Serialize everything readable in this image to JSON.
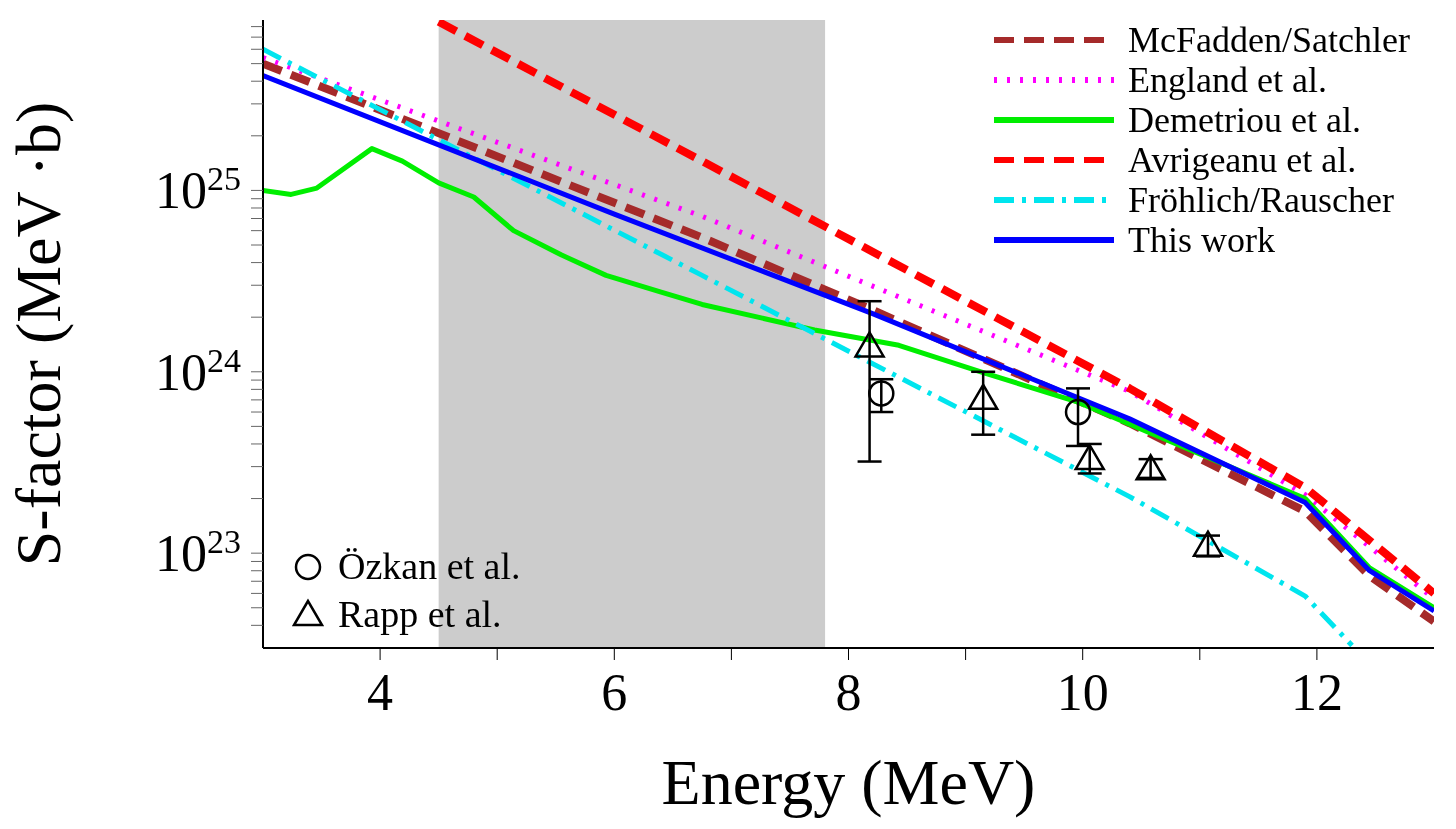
{
  "chart_data": {
    "type": "line",
    "xlabel": "Energy (MeV)",
    "ylabel": "S-factor (MeV ·b)",
    "xlim": [
      3,
      13
    ],
    "xticks": [
      4,
      {
        "value": 5,
        "label": null
      },
      6,
      {
        "value": 7,
        "label": null
      },
      8,
      {
        "value": 9,
        "label": null
      },
      10,
      {
        "value": 11,
        "label": null
      },
      12
    ],
    "ylim": [
      3e+22,
      8.7e+25
    ],
    "log": "y",
    "yticks": [
      {
        "value": 4e+22,
        "label": null
      },
      {
        "value": 5e+22,
        "label": null
      },
      {
        "value": 6e+22,
        "label": null
      },
      {
        "value": 7e+22,
        "label": null
      },
      {
        "value": 8e+22,
        "label": null
      },
      {
        "value": 9e+22,
        "label": null
      },
      {
        "value": 1e+23,
        "label": "10$^{23}$"
      },
      {
        "value": 2e+23,
        "label": null
      },
      {
        "value": 3e+23,
        "label": null
      },
      {
        "value": 4e+23,
        "label": null
      },
      {
        "value": 5e+23,
        "label": null
      },
      {
        "value": 6e+23,
        "label": null
      },
      {
        "value": 7e+23,
        "label": null
      },
      {
        "value": 8e+23,
        "label": null
      },
      {
        "value": 9e+23,
        "label": null
      },
      {
        "value": 1e+24,
        "label": "10$^{24}$"
      },
      {
        "value": 2e+24,
        "label": null
      },
      {
        "value": 3e+24,
        "label": null
      },
      {
        "value": 4e+24,
        "label": null
      },
      {
        "value": 5e+24,
        "label": null
      },
      {
        "value": 6e+24,
        "label": null
      },
      {
        "value": 7e+24,
        "label": null
      },
      {
        "value": 8e+24,
        "label": null
      },
      {
        "value": 9e+24,
        "label": null
      },
      {
        "value": 1e+25,
        "label": "10$^{25}$"
      },
      {
        "value": 2e+25,
        "label": null
      },
      {
        "value": 3e+25,
        "label": null
      },
      {
        "value": 4e+25,
        "label": null
      },
      {
        "value": 5e+25,
        "label": null
      },
      {
        "value": 6e+25,
        "label": null
      },
      {
        "value": 7e+25,
        "label": null
      },
      {
        "value": 8e+25,
        "label": null
      }
    ],
    "legend": "top right",
    "bands": [
      {
        "axis": "x",
        "from": 4.5,
        "to": 7.8,
        "color": "#cccccc"
      }
    ],
    "series": [
      {
        "name": "McFadden/Satchler",
        "color": "#a52a2a",
        "line_style": "dashed",
        "x": [
          3,
          6.75,
          8.2,
          10.4,
          11.9,
          12.45,
          13
        ],
        "values": [
          5e+25,
          5.5e+24,
          2.2e+24,
          5.2e+23,
          1.7e+23,
          7.5e+22,
          4.2e+22
        ]
      },
      {
        "name": "England et al.",
        "color": "#ff00ff",
        "line_style": "dotted",
        "x": [
          3,
          6.75,
          10.4,
          11.9,
          13
        ],
        "values": [
          5.4e+25,
          7.2e+24,
          7.8e+23,
          2.1e+23,
          5.6e+22
        ]
      },
      {
        "name": "Demetriou et al.",
        "color": "#00ee00",
        "line_style": "solid",
        "x": [
          3,
          3.24,
          3.46,
          3.93,
          4.19,
          4.5,
          4.8,
          5.14,
          5.55,
          5.93,
          6.4,
          6.75,
          7.71,
          8.43,
          9.13,
          9.96,
          10.38,
          11.9,
          12.45,
          13
        ],
        "values": [
          1e+25,
          9.5e+24,
          1.03e+25,
          1.7e+25,
          1.45e+25,
          1.1e+25,
          9.2e+24,
          6e+24,
          4.4e+24,
          3.4e+24,
          2.75e+24,
          2.35e+24,
          1.7e+24,
          1.4e+24,
          1e+24,
          6.8e+23,
          5.2e+23,
          2e+23,
          8.3e+22,
          5e+22
        ]
      },
      {
        "name": "Avrigeanu et al.",
        "color": "#ff0000",
        "line_style": "dashed",
        "x": [
          4.5,
          6.75,
          10.4,
          11.9,
          13
        ],
        "values": [
          8.5e+25,
          1.45e+25,
          8.1e+23,
          2.3e+23,
          6e+22
        ]
      },
      {
        "name": "Fröhlich/Rauscher",
        "color": "#00e5ee",
        "line_style": "dashdot",
        "x": [
          3,
          6.75,
          10.4,
          11.9,
          12.3
        ],
        "values": [
          6e+25,
          3.4e+24,
          2.05e+23,
          5.8e+22,
          3.1e+22
        ]
      },
      {
        "name": "This work",
        "color": "#0000ff",
        "line_style": "solid",
        "x": [
          3,
          6,
          8.2,
          10.4,
          11.9,
          12.45,
          13
        ],
        "values": [
          4.3e+25,
          7.4e+24,
          2.1e+24,
          5.5e+23,
          1.9e+23,
          8e+22,
          4.8e+22
        ]
      },
      {
        "name": "Özkan et al.",
        "type": "scatter",
        "color": "#000000",
        "marker": "circle",
        "x": [
          8.28,
          9.96
        ],
        "values": [
          7.6e+23,
          6e+23
        ],
        "errors": [
          [
            6e+23,
            9.1e+23
          ],
          [
            3.9e+23,
            8.1e+23
          ]
        ]
      },
      {
        "name": "Rapp et al.",
        "type": "scatter",
        "color": "#000000",
        "marker": "triangle",
        "x": [
          8.18,
          9.15,
          10.06,
          10.58,
          11.07
        ],
        "values": [
          1.38e+24,
          7.1e+23,
          3.3e+23,
          2.9e+23,
          1.1e+23
        ],
        "errors": [
          [
            3.2e+23,
            2.45e+24
          ],
          [
            4.5e+23,
            1e+24
          ],
          [
            2.75e+23,
            4e+23
          ],
          [
            2.6e+23,
            3.3e+23
          ],
          [
            9.6e+22,
            1.25e+23
          ]
        ]
      }
    ]
  }
}
